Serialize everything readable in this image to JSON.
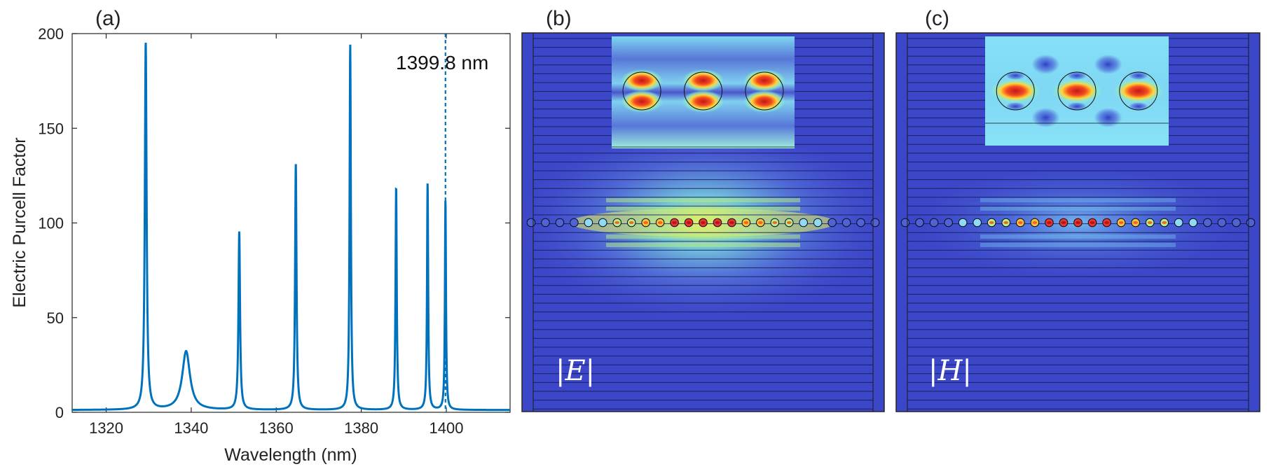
{
  "panels": {
    "a": {
      "label": "(a)",
      "chart_data": {
        "type": "line",
        "xlabel": "Wavelength (nm)",
        "ylabel": "Electric Purcell Factor",
        "xlim": [
          1312,
          1415
        ],
        "ylim": [
          0,
          200
        ],
        "xticks": [
          1320,
          1340,
          1360,
          1380,
          1400
        ],
        "yticks": [
          0,
          50,
          100,
          150,
          200
        ],
        "baseline": 1.2,
        "peaks": [
          {
            "center": 1329.3,
            "height": 194,
            "width": 0.25
          },
          {
            "center": 1338.8,
            "height": 31,
            "width": 1.1
          },
          {
            "center": 1351.3,
            "height": 94,
            "width": 0.22
          },
          {
            "center": 1364.6,
            "height": 130,
            "width": 0.2
          },
          {
            "center": 1377.4,
            "height": 193,
            "width": 0.18
          },
          {
            "center": 1388.2,
            "height": 118,
            "width": 0.17
          },
          {
            "center": 1395.6,
            "height": 120,
            "width": 0.16
          },
          {
            "center": 1399.8,
            "height": 111,
            "width": 0.15
          }
        ],
        "marker": {
          "x": 1399.8,
          "label": "1399.8 nm"
        },
        "line_color": "#0072bd"
      }
    },
    "b": {
      "label": "(b)",
      "field_label": "|E|",
      "field": "electric",
      "hole_count": 25,
      "highlight_rows": [
        3,
        5,
        7,
        9
      ]
    },
    "c": {
      "label": "(c)",
      "field_label": "|H|",
      "field": "magnetic",
      "hole_count": 25,
      "highlight_rows": [
        2,
        4,
        6
      ]
    }
  }
}
